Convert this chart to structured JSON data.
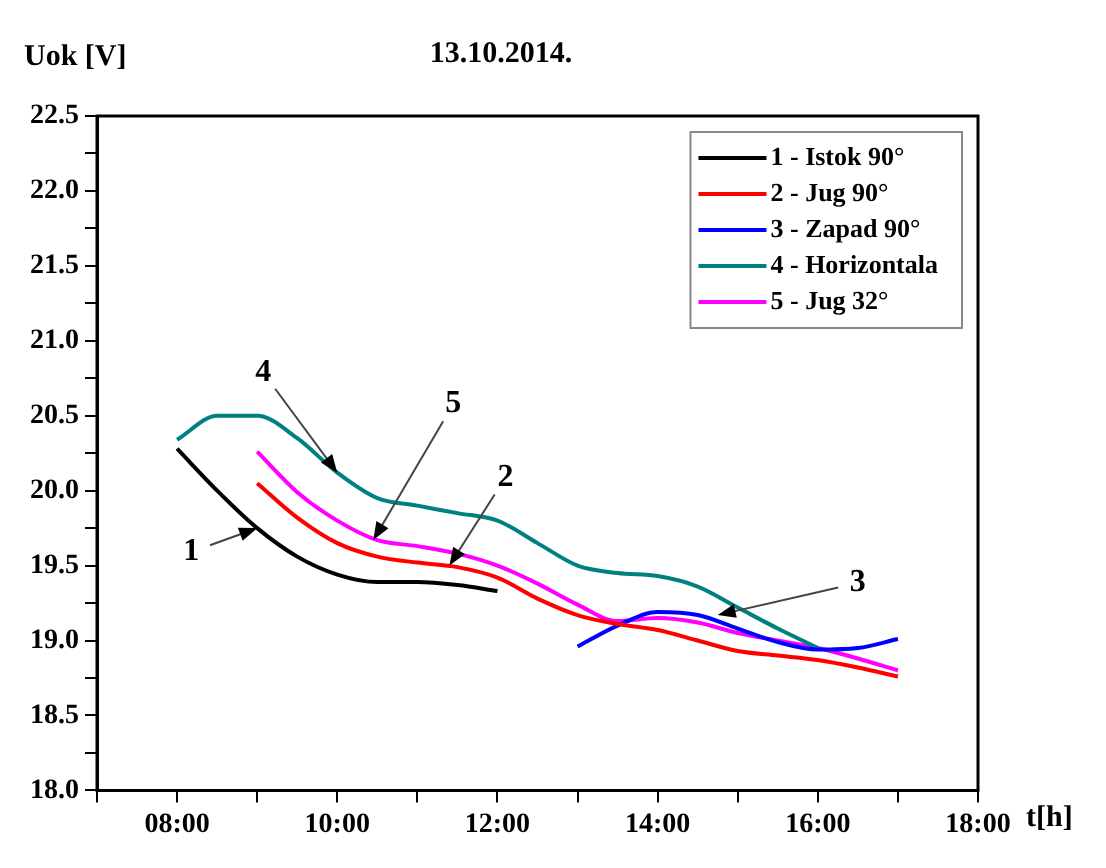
{
  "chart_data": {
    "type": "line",
    "title": "13.10.2014.",
    "xlabel": "t[h]",
    "ylabel": "Uok [V]",
    "legend": "top right",
    "xlim": [
      7,
      18
    ],
    "xticks": [
      {
        "value": 7,
        "label": null
      },
      {
        "value": 8,
        "label": "08:00"
      },
      {
        "value": 9,
        "label": null
      },
      {
        "value": 10,
        "label": "10:00"
      },
      {
        "value": 11,
        "label": null
      },
      {
        "value": 12,
        "label": "12:00"
      },
      {
        "value": 13,
        "label": null
      },
      {
        "value": 14,
        "label": "14:00"
      },
      {
        "value": 15,
        "label": null
      },
      {
        "value": 16,
        "label": "16:00"
      },
      {
        "value": 17,
        "label": null
      },
      {
        "value": 18,
        "label": "18:00"
      }
    ],
    "ylim": [
      18,
      22.5
    ],
    "yticks": [
      {
        "value": 18,
        "label": "18.0"
      },
      {
        "value": 18.25,
        "label": null
      },
      18.5,
      {
        "value": 18.75,
        "label": null
      },
      {
        "value": 19,
        "label": "19.0"
      },
      {
        "value": 19.25,
        "label": null
      },
      19.5,
      {
        "value": 19.75,
        "label": null
      },
      {
        "value": 20,
        "label": "20.0"
      },
      {
        "value": 20.25,
        "label": null
      },
      20.5,
      {
        "value": 20.75,
        "label": null
      },
      {
        "value": 21,
        "label": "21.0"
      },
      {
        "value": 21.25,
        "label": null
      },
      21.5,
      {
        "value": 21.75,
        "label": null
      },
      {
        "value": 22,
        "label": "22.0"
      },
      {
        "value": 22.25,
        "label": null
      },
      22.5
    ],
    "series": [
      {
        "name": "1 - Istok 90°",
        "color": "#000000",
        "x": [
          8,
          8.5,
          9,
          9.5,
          10,
          10.5,
          11,
          11.5,
          12
        ],
        "values": [
          20.28,
          20.0,
          19.75,
          19.56,
          19.44,
          19.39,
          19.39,
          19.37,
          19.33
        ]
      },
      {
        "name": "2 - Jug 90°",
        "color": "#ff0000",
        "x": [
          9,
          9.5,
          10,
          10.5,
          11,
          11.5,
          12,
          12.5,
          13,
          13.5,
          14,
          14.5,
          15,
          15.5,
          16,
          16.5,
          17
        ],
        "values": [
          20.05,
          19.82,
          19.65,
          19.56,
          19.52,
          19.49,
          19.42,
          19.28,
          19.17,
          19.11,
          19.07,
          19.0,
          18.93,
          18.9,
          18.87,
          18.82,
          18.76
        ]
      },
      {
        "name": "3 - Zapad 90°",
        "color": "#0000ff",
        "x": [
          13,
          13.5,
          14,
          14.5,
          15,
          15.5,
          16,
          16.5,
          17
        ],
        "values": [
          18.96,
          19.1,
          19.19,
          19.17,
          19.08,
          18.99,
          18.94,
          18.95,
          19.01
        ]
      },
      {
        "name": "4 - Horizontala",
        "color": "#008080",
        "x": [
          8,
          8.5,
          9,
          9.5,
          10,
          10.5,
          11,
          11.5,
          12,
          12.5,
          13,
          13.5,
          14,
          14.5,
          15,
          15.5,
          16
        ],
        "values": [
          20.34,
          20.5,
          20.5,
          20.35,
          20.12,
          19.95,
          19.9,
          19.85,
          19.8,
          19.65,
          19.5,
          19.45,
          19.43,
          19.36,
          19.22,
          19.08,
          18.95
        ]
      },
      {
        "name": "5 - Jug 32°",
        "color": "#ff00ff",
        "x": [
          9,
          9.5,
          10,
          10.5,
          11,
          11.5,
          12,
          12.5,
          13,
          13.5,
          14,
          14.5,
          15,
          15.5,
          16,
          16.5,
          17
        ],
        "values": [
          20.26,
          19.99,
          19.8,
          19.67,
          19.63,
          19.58,
          19.5,
          19.38,
          19.24,
          19.13,
          19.15,
          19.12,
          19.05,
          19.0,
          18.95,
          18.88,
          18.8
        ]
      }
    ],
    "annotations": [
      {
        "text": "1",
        "x": 9,
        "y": 19.75
      },
      {
        "text": "2",
        "x": 11.4,
        "y": 19.5
      },
      {
        "text": "3",
        "x": 14.75,
        "y": 19.17
      },
      {
        "text": "4",
        "x": 10,
        "y": 20.12
      },
      {
        "text": "5",
        "x": 10.45,
        "y": 19.67
      }
    ]
  }
}
